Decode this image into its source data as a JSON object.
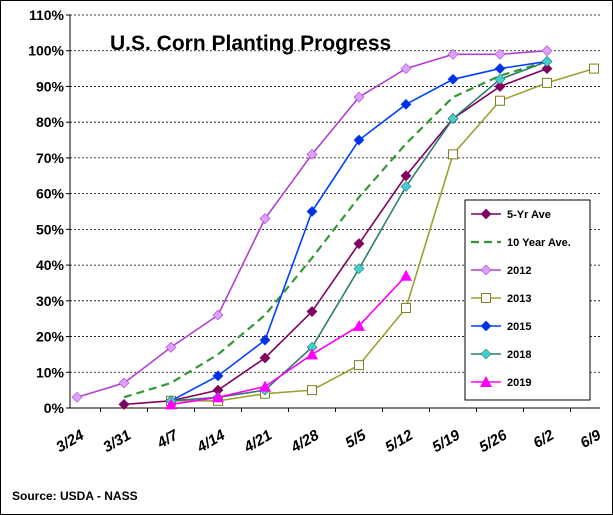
{
  "chart_data": {
    "type": "line",
    "title": "U.S. Corn Planting Progress",
    "source": "Source: USDA - NASS",
    "categories": [
      "3/24",
      "3/31",
      "4/7",
      "4/14",
      "4/21",
      "4/28",
      "5/5",
      "5/12",
      "5/19",
      "5/26",
      "6/2",
      "6/9"
    ],
    "ylim": [
      0,
      110
    ],
    "yticks": [
      {
        "value": 0,
        "label": "0%"
      },
      {
        "value": 10,
        "label": "10%"
      },
      {
        "value": 20,
        "label": "20%"
      },
      {
        "value": 30,
        "label": "30%"
      },
      {
        "value": 40,
        "label": "40%"
      },
      {
        "value": 50,
        "label": "50%"
      },
      {
        "value": 60,
        "label": "60%"
      },
      {
        "value": 70,
        "label": "70%"
      },
      {
        "value": 80,
        "label": "80%"
      },
      {
        "value": 90,
        "label": "90%"
      },
      {
        "value": 100,
        "label": "100%"
      },
      {
        "value": 110,
        "label": "110%"
      }
    ],
    "grid": true,
    "legend": "right",
    "series": [
      {
        "name": "5-Yr Ave",
        "color": "#800060",
        "marker": "diamond",
        "marker_color": "#800060",
        "values": [
          null,
          1,
          2,
          5,
          14,
          27,
          46,
          65,
          81,
          90,
          95,
          null
        ]
      },
      {
        "name": "10 Year Ave.",
        "color": "#339933",
        "dash": true,
        "marker": "none",
        "values": [
          null,
          3,
          7,
          15,
          26,
          42,
          59,
          74,
          87,
          93,
          97,
          null
        ]
      },
      {
        "name": "2012",
        "color": "#b040d0",
        "marker": "diamond",
        "marker_color": "#dda0ff",
        "values": [
          3,
          7,
          17,
          26,
          53,
          71,
          87,
          95,
          99,
          99,
          100,
          null
        ]
      },
      {
        "name": "2013",
        "color": "#a0a030",
        "marker": "square-open",
        "marker_color": "#808020",
        "values": [
          null,
          null,
          2,
          2,
          4,
          5,
          12,
          28,
          71,
          86,
          91,
          95
        ]
      },
      {
        "name": "2015",
        "color": "#0040ff",
        "marker": "diamond",
        "marker_color": "#0030e0",
        "values": [
          null,
          null,
          2,
          9,
          19,
          55,
          75,
          85,
          92,
          95,
          97,
          null
        ]
      },
      {
        "name": "2018",
        "color": "#2e7d6e",
        "marker": "diamond",
        "marker_color": "#40d0d0",
        "values": [
          null,
          null,
          2,
          3,
          5,
          17,
          39,
          62,
          81,
          92,
          97,
          null
        ]
      },
      {
        "name": "2019",
        "color": "#ff00ff",
        "marker": "triangle",
        "marker_color": "#ff00ff",
        "values": [
          null,
          null,
          1,
          3,
          6,
          15,
          23,
          37,
          null,
          null,
          null,
          null
        ]
      }
    ]
  }
}
